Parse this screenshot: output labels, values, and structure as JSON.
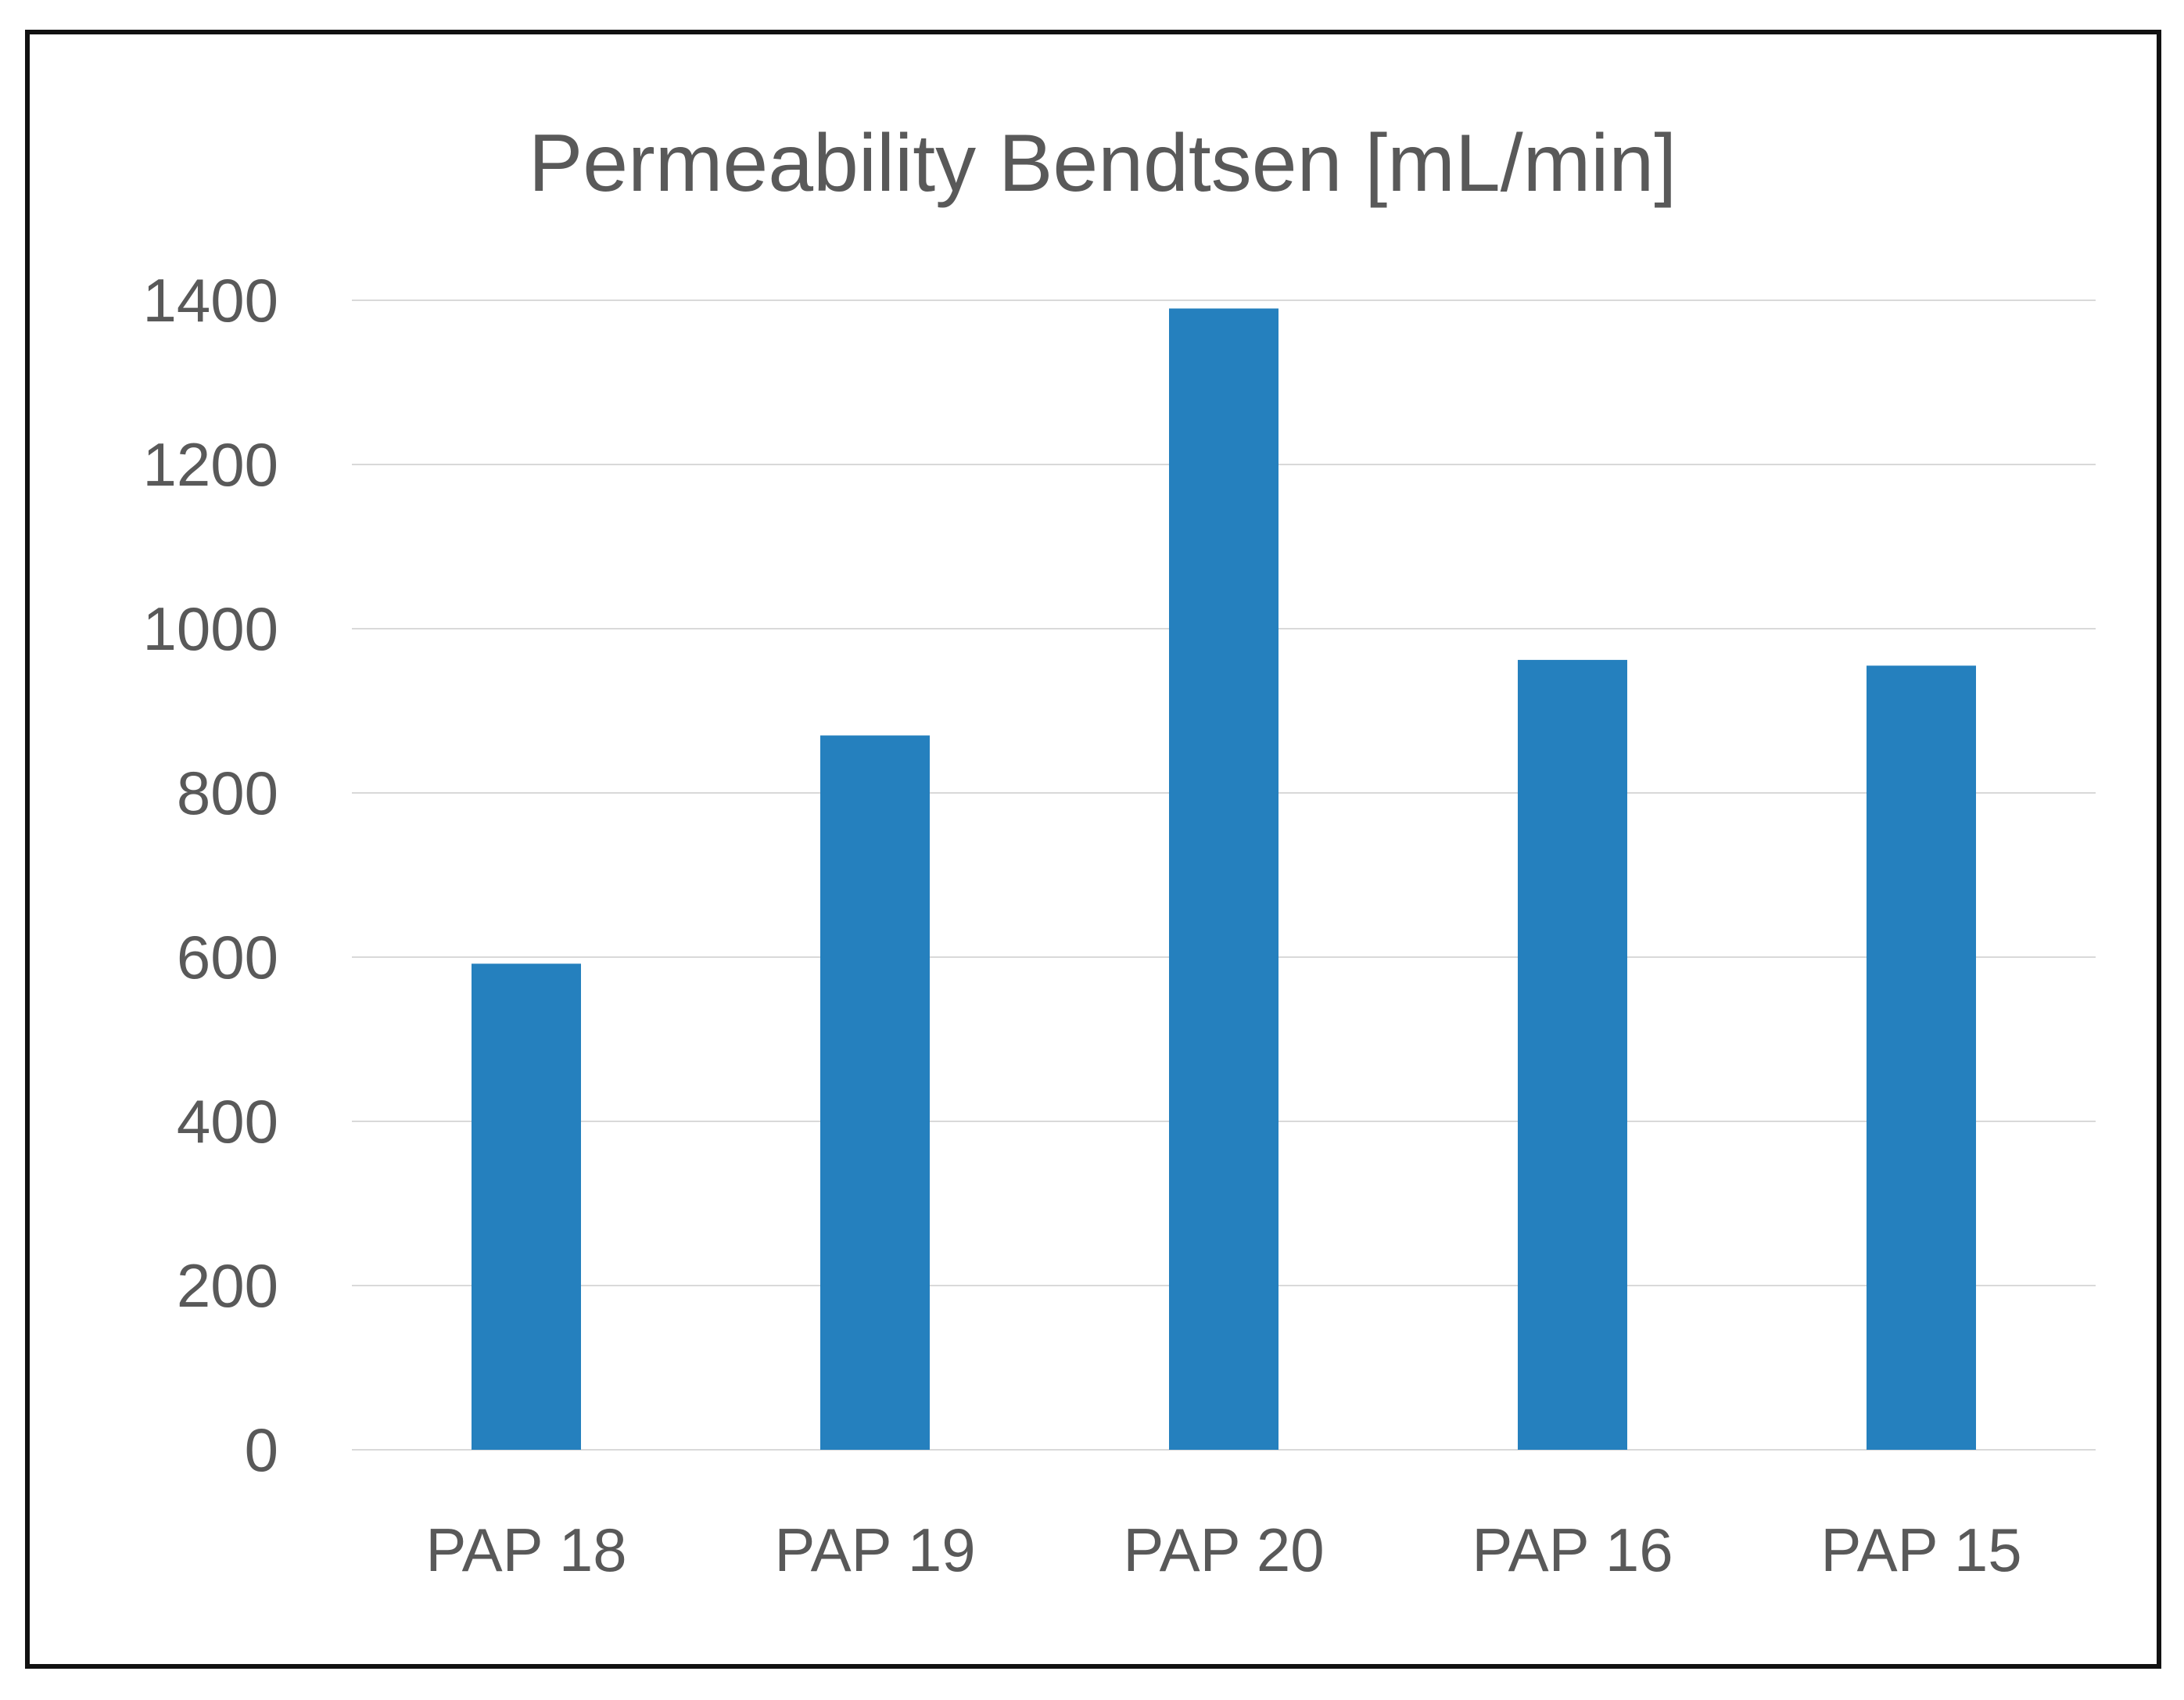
{
  "chart_data": {
    "type": "bar",
    "title": "Permeability Bendtsen [mL/min]",
    "xlabel": "",
    "ylabel": "",
    "categories": [
      "PAP 18",
      "PAP 19",
      "PAP 20",
      "PAP 16",
      "PAP 15"
    ],
    "series": [
      {
        "values": [
          592,
          870,
          1390,
          962,
          955
        ],
        "color": "#2580BE"
      }
    ],
    "ylim": [
      0,
      1400
    ],
    "yticks": [
      "0",
      "200",
      "400",
      "600",
      "800",
      "1000",
      "1200",
      "1400"
    ],
    "grid": true,
    "legend": "none",
    "colors": {
      "bar": "#2580BE",
      "grid": "#D9D9D9",
      "text": "#595959",
      "border": "#111111"
    }
  }
}
